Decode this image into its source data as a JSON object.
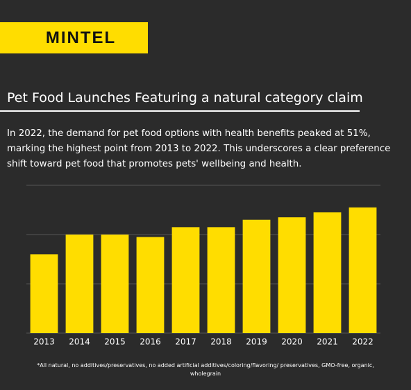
{
  "brand": "MINTEL",
  "chart_data": {
    "type": "bar",
    "title": "Pet Food Launches Featuring a natural category claim",
    "subtitle": "In 2022, the demand for pet food options with health benefits peaked at 51%, marking the highest point from 2013 to 2022. This underscores a clear preference shift toward pet food that promotes pets' wellbeing and health.",
    "note": "*All natural, no additives/preservatives, no added artificial additives/coloring/flavoring/ preservatives, GMO-free, organic, wholegrain",
    "categories": [
      "2013",
      "2014",
      "2015",
      "2016",
      "2017",
      "2018",
      "2019",
      "2020",
      "2021",
      "2022"
    ],
    "values": [
      32,
      40,
      40,
      39,
      43,
      43,
      46,
      47,
      49,
      51
    ],
    "color": "#ffdd00",
    "ylim": [
      0,
      60
    ],
    "yticks": [
      0,
      20,
      40,
      60
    ],
    "grid": true
  }
}
